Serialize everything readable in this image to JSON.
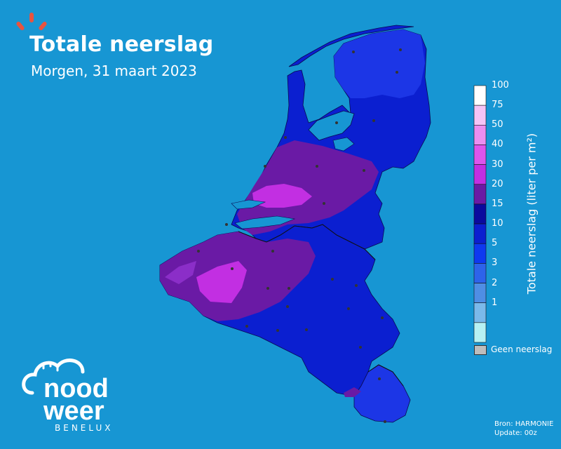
{
  "title": "Totale neerslag",
  "subtitle": "Morgen, 31 maart 2023",
  "legend": {
    "title": "Totale neerslag (liter per m²)",
    "ticks": [
      "100",
      "75",
      "50",
      "40",
      "30",
      "20",
      "15",
      "10",
      "5",
      "3",
      "2",
      "1"
    ],
    "colors": [
      "#ffffff",
      "#f5c4f6",
      "#eb8ef0",
      "#dd55ec",
      "#c22fe2",
      "#6a1aa5",
      "#0a0a9e",
      "#0b1fd0",
      "#0e39f0",
      "#2d63ea",
      "#4f8ee4",
      "#7bb9ea",
      "#b7f1f3"
    ],
    "no_precip_label": "Geen neerslag",
    "no_precip_color": "#bdbdbd"
  },
  "source": {
    "line1": "Bron: HARMONIE",
    "line2": "Update: 00z"
  },
  "logo": {
    "word1": "nood",
    "word2": "weer",
    "word3": "BENELUX",
    "accent": "#e8533f"
  },
  "map": {
    "background": "#1796d3",
    "regions": [
      "Nederland",
      "België",
      "Luxemburg"
    ]
  }
}
